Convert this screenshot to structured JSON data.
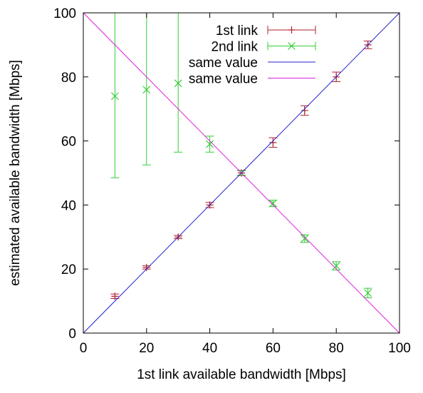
{
  "chart_data": {
    "type": "line",
    "xlabel": "1st link available bandwidth [Mbps]",
    "ylabel": "estimated available bandwidth [Mbps]",
    "xlim": [
      0,
      100
    ],
    "ylim": [
      0,
      100
    ],
    "xticks": [
      0,
      20,
      40,
      60,
      80,
      100
    ],
    "yticks": [
      0,
      20,
      40,
      60,
      80,
      100
    ],
    "grid": false,
    "legend_position": "top-right",
    "series": [
      {
        "name": "1st link",
        "kind": "errorbar",
        "marker": "plus",
        "color": "#b0202c",
        "points": [
          {
            "x": 10,
            "y": 11.5,
            "ylow": 10.8,
            "yhigh": 12.2
          },
          {
            "x": 20,
            "y": 20.5,
            "ylow": 20.0,
            "yhigh": 21.0
          },
          {
            "x": 30,
            "y": 30.0,
            "ylow": 29.5,
            "yhigh": 30.5
          },
          {
            "x": 40,
            "y": 40.0,
            "ylow": 39.2,
            "yhigh": 40.8
          },
          {
            "x": 50,
            "y": 50.0,
            "ylow": 49.2,
            "yhigh": 50.8
          },
          {
            "x": 60,
            "y": 59.5,
            "ylow": 58.0,
            "yhigh": 61.0
          },
          {
            "x": 70,
            "y": 69.5,
            "ylow": 68.0,
            "yhigh": 71.0
          },
          {
            "x": 80,
            "y": 80.0,
            "ylow": 78.5,
            "yhigh": 81.5
          },
          {
            "x": 90,
            "y": 90.0,
            "ylow": 88.8,
            "yhigh": 91.2
          }
        ]
      },
      {
        "name": "2nd link",
        "kind": "errorbar",
        "marker": "cross",
        "color": "#33cc33",
        "points": [
          {
            "x": 10,
            "y": 74.0,
            "ylow": 48.5,
            "yhigh": 100
          },
          {
            "x": 20,
            "y": 76.0,
            "ylow": 52.5,
            "yhigh": 100
          },
          {
            "x": 30,
            "y": 78.0,
            "ylow": 56.5,
            "yhigh": 100
          },
          {
            "x": 40,
            "y": 59.0,
            "ylow": 56.5,
            "yhigh": 61.5
          },
          {
            "x": 50,
            "y": 50.0,
            "ylow": 49.3,
            "yhigh": 50.7
          },
          {
            "x": 60,
            "y": 40.5,
            "ylow": 39.5,
            "yhigh": 41.5
          },
          {
            "x": 70,
            "y": 29.5,
            "ylow": 28.3,
            "yhigh": 30.7
          },
          {
            "x": 80,
            "y": 21.0,
            "ylow": 19.7,
            "yhigh": 22.3
          },
          {
            "x": 90,
            "y": 12.5,
            "ylow": 11.0,
            "yhigh": 14.0
          }
        ]
      },
      {
        "name": "same value",
        "kind": "line",
        "color": "#2222cc",
        "points": [
          {
            "x": 0,
            "y": 0
          },
          {
            "x": 100,
            "y": 100
          }
        ]
      },
      {
        "name": "same value",
        "kind": "line",
        "color": "#dd22dd",
        "points": [
          {
            "x": 0,
            "y": 100
          },
          {
            "x": 100,
            "y": 0
          }
        ]
      }
    ]
  }
}
